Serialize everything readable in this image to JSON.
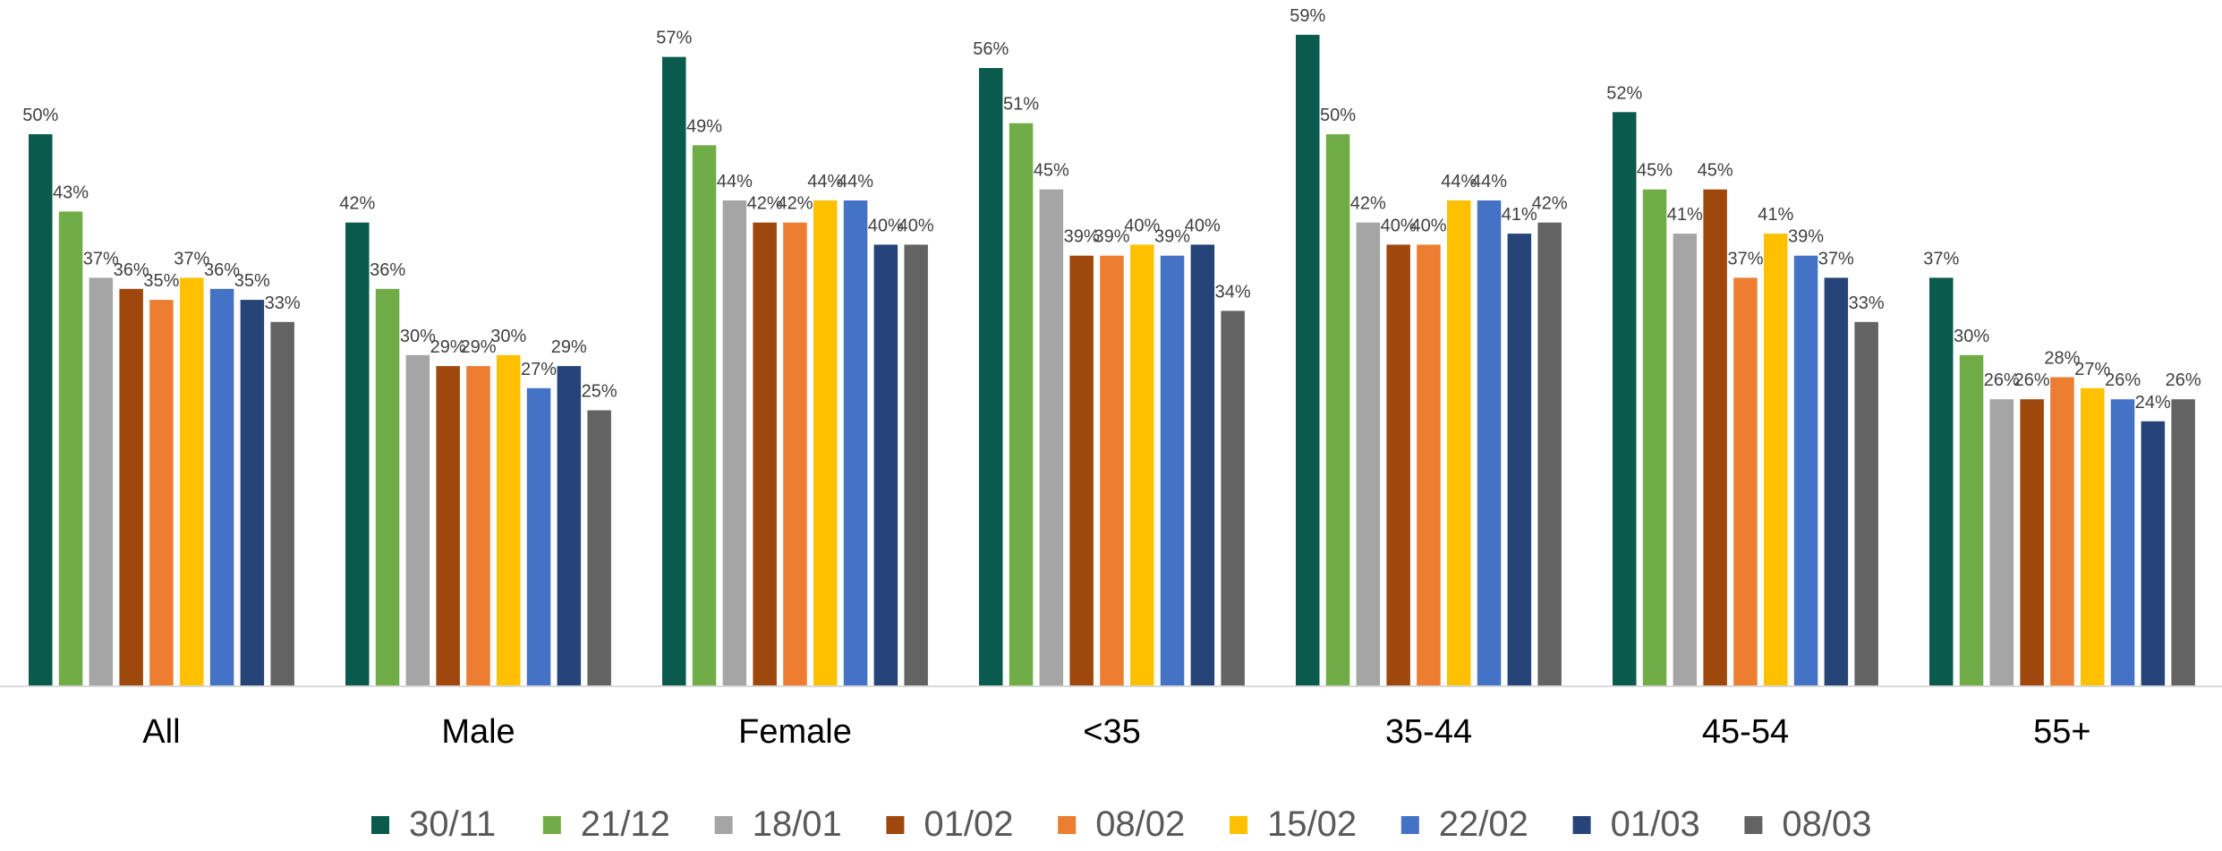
{
  "chart_data": {
    "type": "bar",
    "title": "",
    "xlabel": "",
    "ylabel": "",
    "ylim": [
      0,
      0.62
    ],
    "grid": false,
    "legend_position": "bottom",
    "categories": [
      "All",
      "Male",
      "Female",
      "<35",
      "35-44",
      "45-54",
      "55+"
    ],
    "series": [
      {
        "name": "30/11",
        "color": "#0B5A4E",
        "values": [
          0.5,
          0.42,
          0.57,
          0.56,
          0.59,
          0.52,
          0.37
        ],
        "labels": [
          "50%",
          "42%",
          "57%",
          "56%",
          "59%",
          "52%",
          "37%"
        ]
      },
      {
        "name": "21/12",
        "color": "#70AD47",
        "values": [
          0.43,
          0.36,
          0.49,
          0.51,
          0.5,
          0.45,
          0.3
        ],
        "labels": [
          "43%",
          "36%",
          "49%",
          "51%",
          "50%",
          "45%",
          "30%"
        ]
      },
      {
        "name": "18/01",
        "color": "#A5A5A5",
        "values": [
          0.37,
          0.3,
          0.44,
          0.45,
          0.42,
          0.41,
          0.26
        ],
        "labels": [
          "37%",
          "30%",
          "44%",
          "45%",
          "42%",
          "41%",
          "26%"
        ]
      },
      {
        "name": "01/02",
        "color": "#9E480E",
        "values": [
          0.36,
          0.29,
          0.42,
          0.39,
          0.4,
          0.45,
          0.26
        ],
        "labels": [
          "36%",
          "29%",
          "42%",
          "39%",
          "40%",
          "45%",
          "26%"
        ]
      },
      {
        "name": "08/02",
        "color": "#ED7D31",
        "values": [
          0.35,
          0.29,
          0.42,
          0.39,
          0.4,
          0.37,
          0.28
        ],
        "labels": [
          "35%",
          "29%",
          "42%",
          "39%",
          "40%",
          "37%",
          "28%"
        ]
      },
      {
        "name": "15/02",
        "color": "#FFC000",
        "values": [
          0.37,
          0.3,
          0.44,
          0.4,
          0.44,
          0.41,
          0.27
        ],
        "labels": [
          "37%",
          "30%",
          "44%",
          "40%",
          "44%",
          "41%",
          "27%"
        ]
      },
      {
        "name": "22/02",
        "color": "#4472C4",
        "values": [
          0.36,
          0.27,
          0.44,
          0.39,
          0.44,
          0.39,
          0.26
        ],
        "labels": [
          "36%",
          "27%",
          "44%",
          "39%",
          "44%",
          "39%",
          "26%"
        ]
      },
      {
        "name": "01/03",
        "color": "#264478",
        "values": [
          0.35,
          0.29,
          0.4,
          0.4,
          0.41,
          0.37,
          0.24
        ],
        "labels": [
          "35%",
          "29%",
          "40%",
          "40%",
          "41%",
          "37%",
          "24%"
        ]
      },
      {
        "name": "08/03",
        "color": "#636363",
        "values": [
          0.33,
          0.25,
          0.4,
          0.34,
          0.42,
          0.33,
          0.26
        ],
        "labels": [
          "33%",
          "25%",
          "40%",
          "34%",
          "42%",
          "33%",
          "26%"
        ]
      }
    ]
  }
}
